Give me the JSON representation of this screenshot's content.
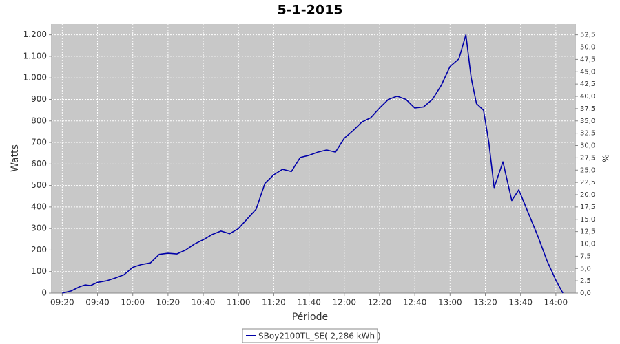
{
  "chart_data": {
    "type": "line",
    "title": "5-1-2015",
    "x_label": "Période",
    "y_label": "Watts",
    "y2_label": "%",
    "x": [
      "09:20",
      "09:25",
      "09:30",
      "09:33",
      "09:36",
      "09:40",
      "09:45",
      "09:50",
      "09:55",
      "10:00",
      "10:05",
      "10:10",
      "10:15",
      "10:20",
      "10:25",
      "10:30",
      "10:35",
      "10:40",
      "10:45",
      "10:50",
      "10:55",
      "11:00",
      "11:05",
      "11:10",
      "11:15",
      "11:20",
      "11:25",
      "11:30",
      "11:35",
      "11:40",
      "11:45",
      "11:50",
      "11:55",
      "12:00",
      "12:05",
      "12:10",
      "12:15",
      "12:20",
      "12:25",
      "12:30",
      "12:35",
      "12:40",
      "12:45",
      "12:50",
      "12:55",
      "13:00",
      "13:05",
      "13:09",
      "13:12",
      "13:15",
      "13:19",
      "13:22",
      "13:25",
      "13:30",
      "13:35",
      "13:39",
      "13:45",
      "13:50",
      "13:55",
      "14:00",
      "14:04"
    ],
    "series": [
      {
        "name": "SBoy2100TL_SE( 2,286 kWh )",
        "color": "#0000a8",
        "values": [
          0,
          10,
          30,
          38,
          35,
          50,
          57,
          70,
          85,
          120,
          133,
          140,
          180,
          185,
          182,
          200,
          228,
          248,
          272,
          288,
          276,
          300,
          345,
          390,
          510,
          550,
          575,
          565,
          630,
          640,
          655,
          665,
          655,
          720,
          755,
          795,
          815,
          860,
          900,
          915,
          900,
          860,
          865,
          900,
          965,
          1053,
          1088,
          1200,
          1000,
          880,
          850,
          700,
          490,
          610,
          430,
          480,
          360,
          260,
          150,
          60,
          0
        ]
      }
    ],
    "xlim": [
      "09:14",
      "14:11"
    ],
    "xticks": [
      "09:20",
      "09:40",
      "10:00",
      "10:20",
      "10:40",
      "11:00",
      "11:20",
      "11:40",
      "12:00",
      "12:20",
      "12:40",
      "13:00",
      "13:20",
      "13:40",
      "14:00"
    ],
    "ylim": [
      0,
      1250
    ],
    "yticks": [
      0,
      100,
      200,
      300,
      400,
      500,
      600,
      700,
      800,
      900,
      {
        "value": 1000,
        "label": "1.000"
      },
      {
        "value": 1100,
        "label": "1.100"
      },
      {
        "value": 1200,
        "label": "1.200"
      }
    ],
    "y2lim": [
      0,
      54.6875
    ],
    "y2ticks": [
      {
        "value": 0,
        "label": "0,0"
      },
      {
        "value": 2.5,
        "label": "2,5"
      },
      {
        "value": 5,
        "label": "5,0"
      },
      {
        "value": 7.5,
        "label": "7,5"
      },
      {
        "value": 10,
        "label": "10,0"
      },
      {
        "value": 12.5,
        "label": "12,5"
      },
      {
        "value": 15,
        "label": "15,0"
      },
      {
        "value": 17.5,
        "label": "17,5"
      },
      {
        "value": 20,
        "label": "20,0"
      },
      {
        "value": 22.5,
        "label": "22,5"
      },
      {
        "value": 25,
        "label": "25,0"
      },
      {
        "value": 27.5,
        "label": "27,5"
      },
      {
        "value": 30,
        "label": "30,0"
      },
      {
        "value": 32.5,
        "label": "32,5"
      },
      {
        "value": 35,
        "label": "35,0"
      },
      {
        "value": 37.5,
        "label": "37,5"
      },
      {
        "value": 40,
        "label": "40,0"
      },
      {
        "value": 42.5,
        "label": "42,5"
      },
      {
        "value": 45,
        "label": "45,0"
      },
      {
        "value": 47.5,
        "label": "47,5"
      },
      {
        "value": 50,
        "label": "50,0"
      },
      {
        "value": 52.5,
        "label": "52,5"
      }
    ],
    "grid": true,
    "legend": "bottom"
  }
}
